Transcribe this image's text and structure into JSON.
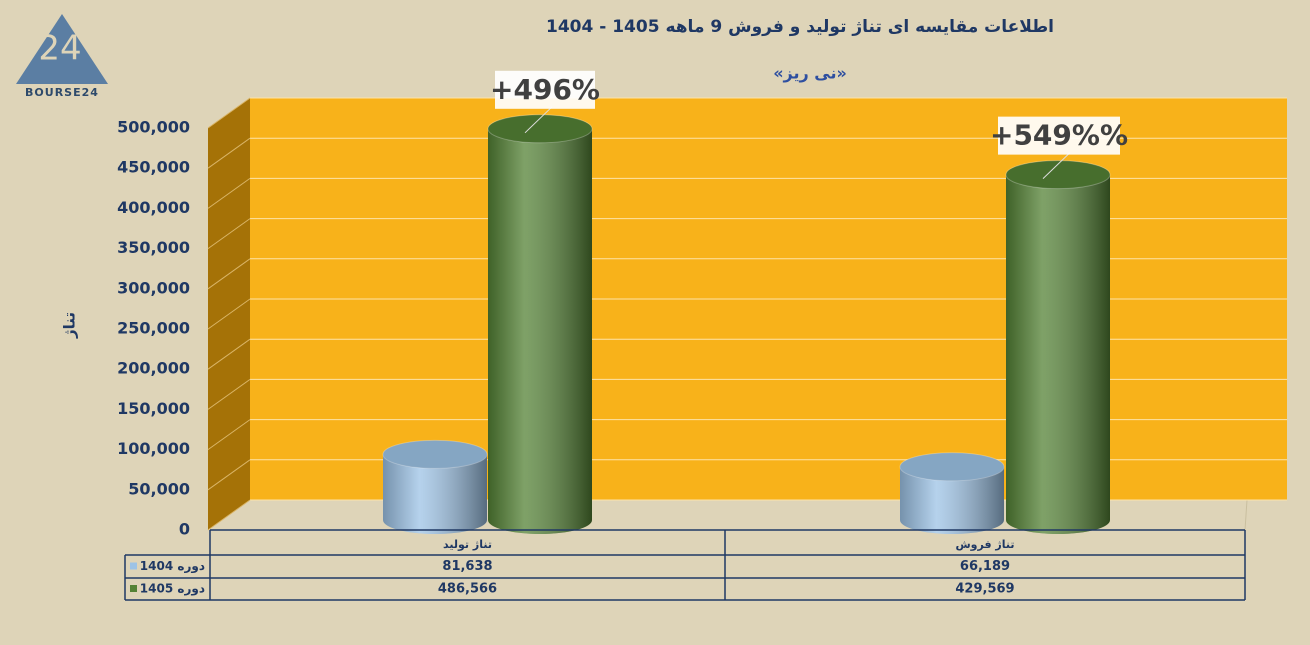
{
  "logo": {
    "text": "BOURSE24"
  },
  "chart_data": {
    "type": "bar",
    "title": "اطلاعات مقایسه ای تناژ تولید و فروش 9 ماهه 1405 - 1404",
    "subtitle": "«نی ریز»",
    "y_label": "تناژ",
    "categories": [
      "تناژ تولید",
      "تناژ فروش"
    ],
    "series": [
      {
        "name": "دوره 1404",
        "color": "#9dc3e6",
        "values": [
          81638,
          66189
        ],
        "value_labels": [
          "81,638",
          "66,189"
        ]
      },
      {
        "name": "دوره 1405",
        "color": "#548235",
        "values": [
          486566,
          429569
        ],
        "value_labels": [
          "486,566",
          "429,569"
        ]
      }
    ],
    "annotations": [
      "+496%",
      "+549%%"
    ],
    "ylim": [
      0,
      500000
    ],
    "yticks": [
      0,
      {
        "value": 50000,
        "label": "50,000"
      },
      {
        "value": 100000,
        "label": "100,000"
      },
      {
        "value": 150000,
        "label": "150,000"
      },
      {
        "value": 200000,
        "label": "200,000"
      },
      {
        "value": 250000,
        "label": "250,000"
      },
      {
        "value": 300000,
        "label": "300,000"
      },
      {
        "value": 350000,
        "label": "350,000"
      },
      {
        "value": 400000,
        "label": "400,000"
      },
      {
        "value": 450000,
        "label": "450,000"
      },
      {
        "value": 500000,
        "label": "500,000"
      }
    ],
    "grid": true,
    "wall_color": "#f8b21a"
  }
}
